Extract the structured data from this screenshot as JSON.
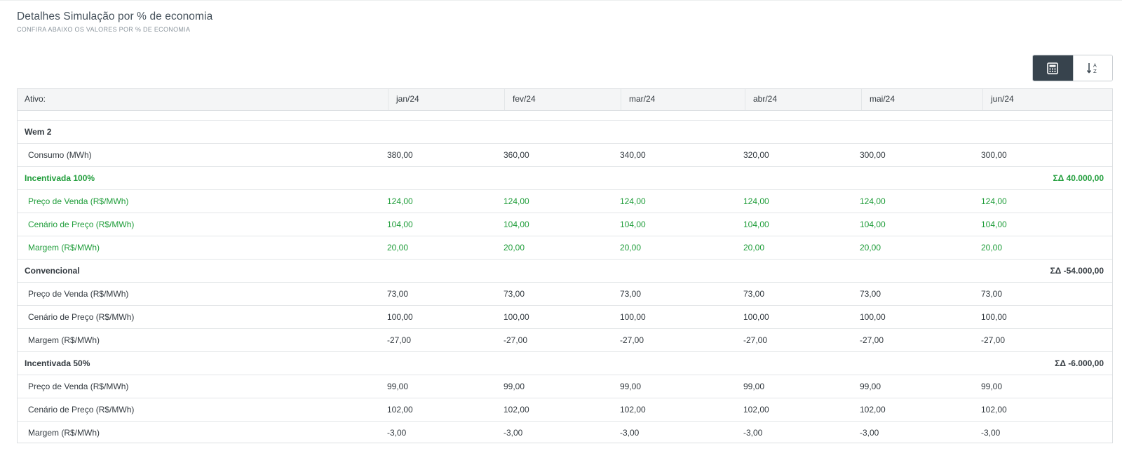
{
  "header": {
    "title": "Detalhes Simulação por % de economia",
    "subtitle": "CONFIRA ABAIXO OS VALORES POR % DE ECONOMIA"
  },
  "toolbar": {
    "buttons": [
      {
        "icon": "calculator-icon",
        "active": true
      },
      {
        "icon": "sort-alpha-icon",
        "active": false
      }
    ]
  },
  "table": {
    "columns": [
      "Ativo:",
      "jan/24",
      "fev/24",
      "mar/24",
      "abr/24",
      "mai/24",
      "jun/24"
    ],
    "asset": "Wem 2",
    "consumo": {
      "label": "Consumo (MWh)",
      "values": [
        "380,00",
        "360,00",
        "340,00",
        "320,00",
        "300,00",
        "300,00"
      ]
    },
    "groups": [
      {
        "name": "Incentivada 100%",
        "sum": "ΣΔ 40.000,00",
        "green": true,
        "rows": [
          {
            "label": "Preço de Venda (R$/MWh)",
            "values": [
              "124,00",
              "124,00",
              "124,00",
              "124,00",
              "124,00",
              "124,00"
            ]
          },
          {
            "label": "Cenário de Preço (R$/MWh)",
            "values": [
              "104,00",
              "104,00",
              "104,00",
              "104,00",
              "104,00",
              "104,00"
            ]
          },
          {
            "label": "Margem (R$/MWh)",
            "values": [
              "20,00",
              "20,00",
              "20,00",
              "20,00",
              "20,00",
              "20,00"
            ]
          }
        ]
      },
      {
        "name": "Convencional",
        "sum": "ΣΔ -54.000,00",
        "green": false,
        "rows": [
          {
            "label": "Preço de Venda (R$/MWh)",
            "values": [
              "73,00",
              "73,00",
              "73,00",
              "73,00",
              "73,00",
              "73,00"
            ]
          },
          {
            "label": "Cenário de Preço (R$/MWh)",
            "values": [
              "100,00",
              "100,00",
              "100,00",
              "100,00",
              "100,00",
              "100,00"
            ]
          },
          {
            "label": "Margem (R$/MWh)",
            "values": [
              "-27,00",
              "-27,00",
              "-27,00",
              "-27,00",
              "-27,00",
              "-27,00"
            ]
          }
        ]
      },
      {
        "name": "Incentivada 50%",
        "sum": "ΣΔ -6.000,00",
        "green": false,
        "rows": [
          {
            "label": "Preço de Venda (R$/MWh)",
            "values": [
              "99,00",
              "99,00",
              "99,00",
              "99,00",
              "99,00",
              "99,00"
            ]
          },
          {
            "label": "Cenário de Preço (R$/MWh)",
            "values": [
              "102,00",
              "102,00",
              "102,00",
              "102,00",
              "102,00",
              "102,00"
            ]
          },
          {
            "label": "Margem (R$/MWh)",
            "values": [
              "-3,00",
              "-3,00",
              "-3,00",
              "-3,00",
              "-3,00",
              "-3,00"
            ]
          }
        ]
      }
    ]
  }
}
